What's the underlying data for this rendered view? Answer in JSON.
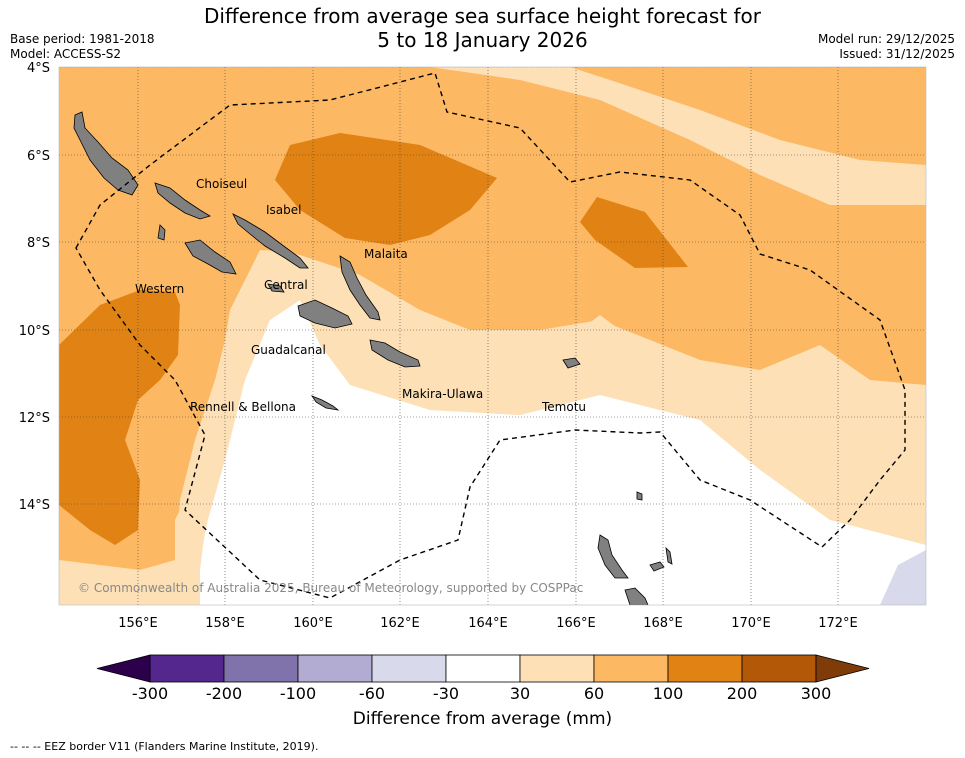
{
  "title_line1": "Difference from average sea surface height forecast for",
  "title_line2": "5 to 18 January 2026",
  "base_period": "Base period: 1981-2018",
  "model": "Model: ACCESS-S2",
  "model_run": "Model run: 29/12/2025",
  "issued": "Issued: 31/12/2025",
  "lat_labels": [
    "4°S",
    "6°S",
    "8°S",
    "10°S",
    "12°S",
    "14°S"
  ],
  "lon_labels": [
    "156°E",
    "158°E",
    "160°E",
    "162°E",
    "164°E",
    "166°E",
    "168°E",
    "170°E",
    "172°E"
  ],
  "regions": {
    "choiseul": "Choiseul",
    "isabel": "Isabel",
    "malaita": "Malaita",
    "western": "Western",
    "central": "Central",
    "guadalcanal": "Guadalcanal",
    "makira": "Makira-Ulawa",
    "rennell": "Rennell & Bellona",
    "temotu": "Temotu"
  },
  "copyright": "© Commonwealth of Australia 2025, Bureau of Meteorology, supported by COSPPac",
  "colorbar": {
    "ticks": [
      "-300",
      "-200",
      "-100",
      "-60",
      "-30",
      "30",
      "60",
      "100",
      "200",
      "300"
    ],
    "colors": [
      "#54278f",
      "#8073ac",
      "#b2abd2",
      "#d8daeb",
      "#ffffff",
      "#fee0b6",
      "#fdb863",
      "#e08214",
      "#b35806"
    ],
    "under_color": "#2d004b",
    "over_color": "#7f3b08",
    "title": "Difference from average (mm)"
  },
  "footer": "--  --  -- EEZ border V11 (Flanders Marine Institute, 2019)."
}
